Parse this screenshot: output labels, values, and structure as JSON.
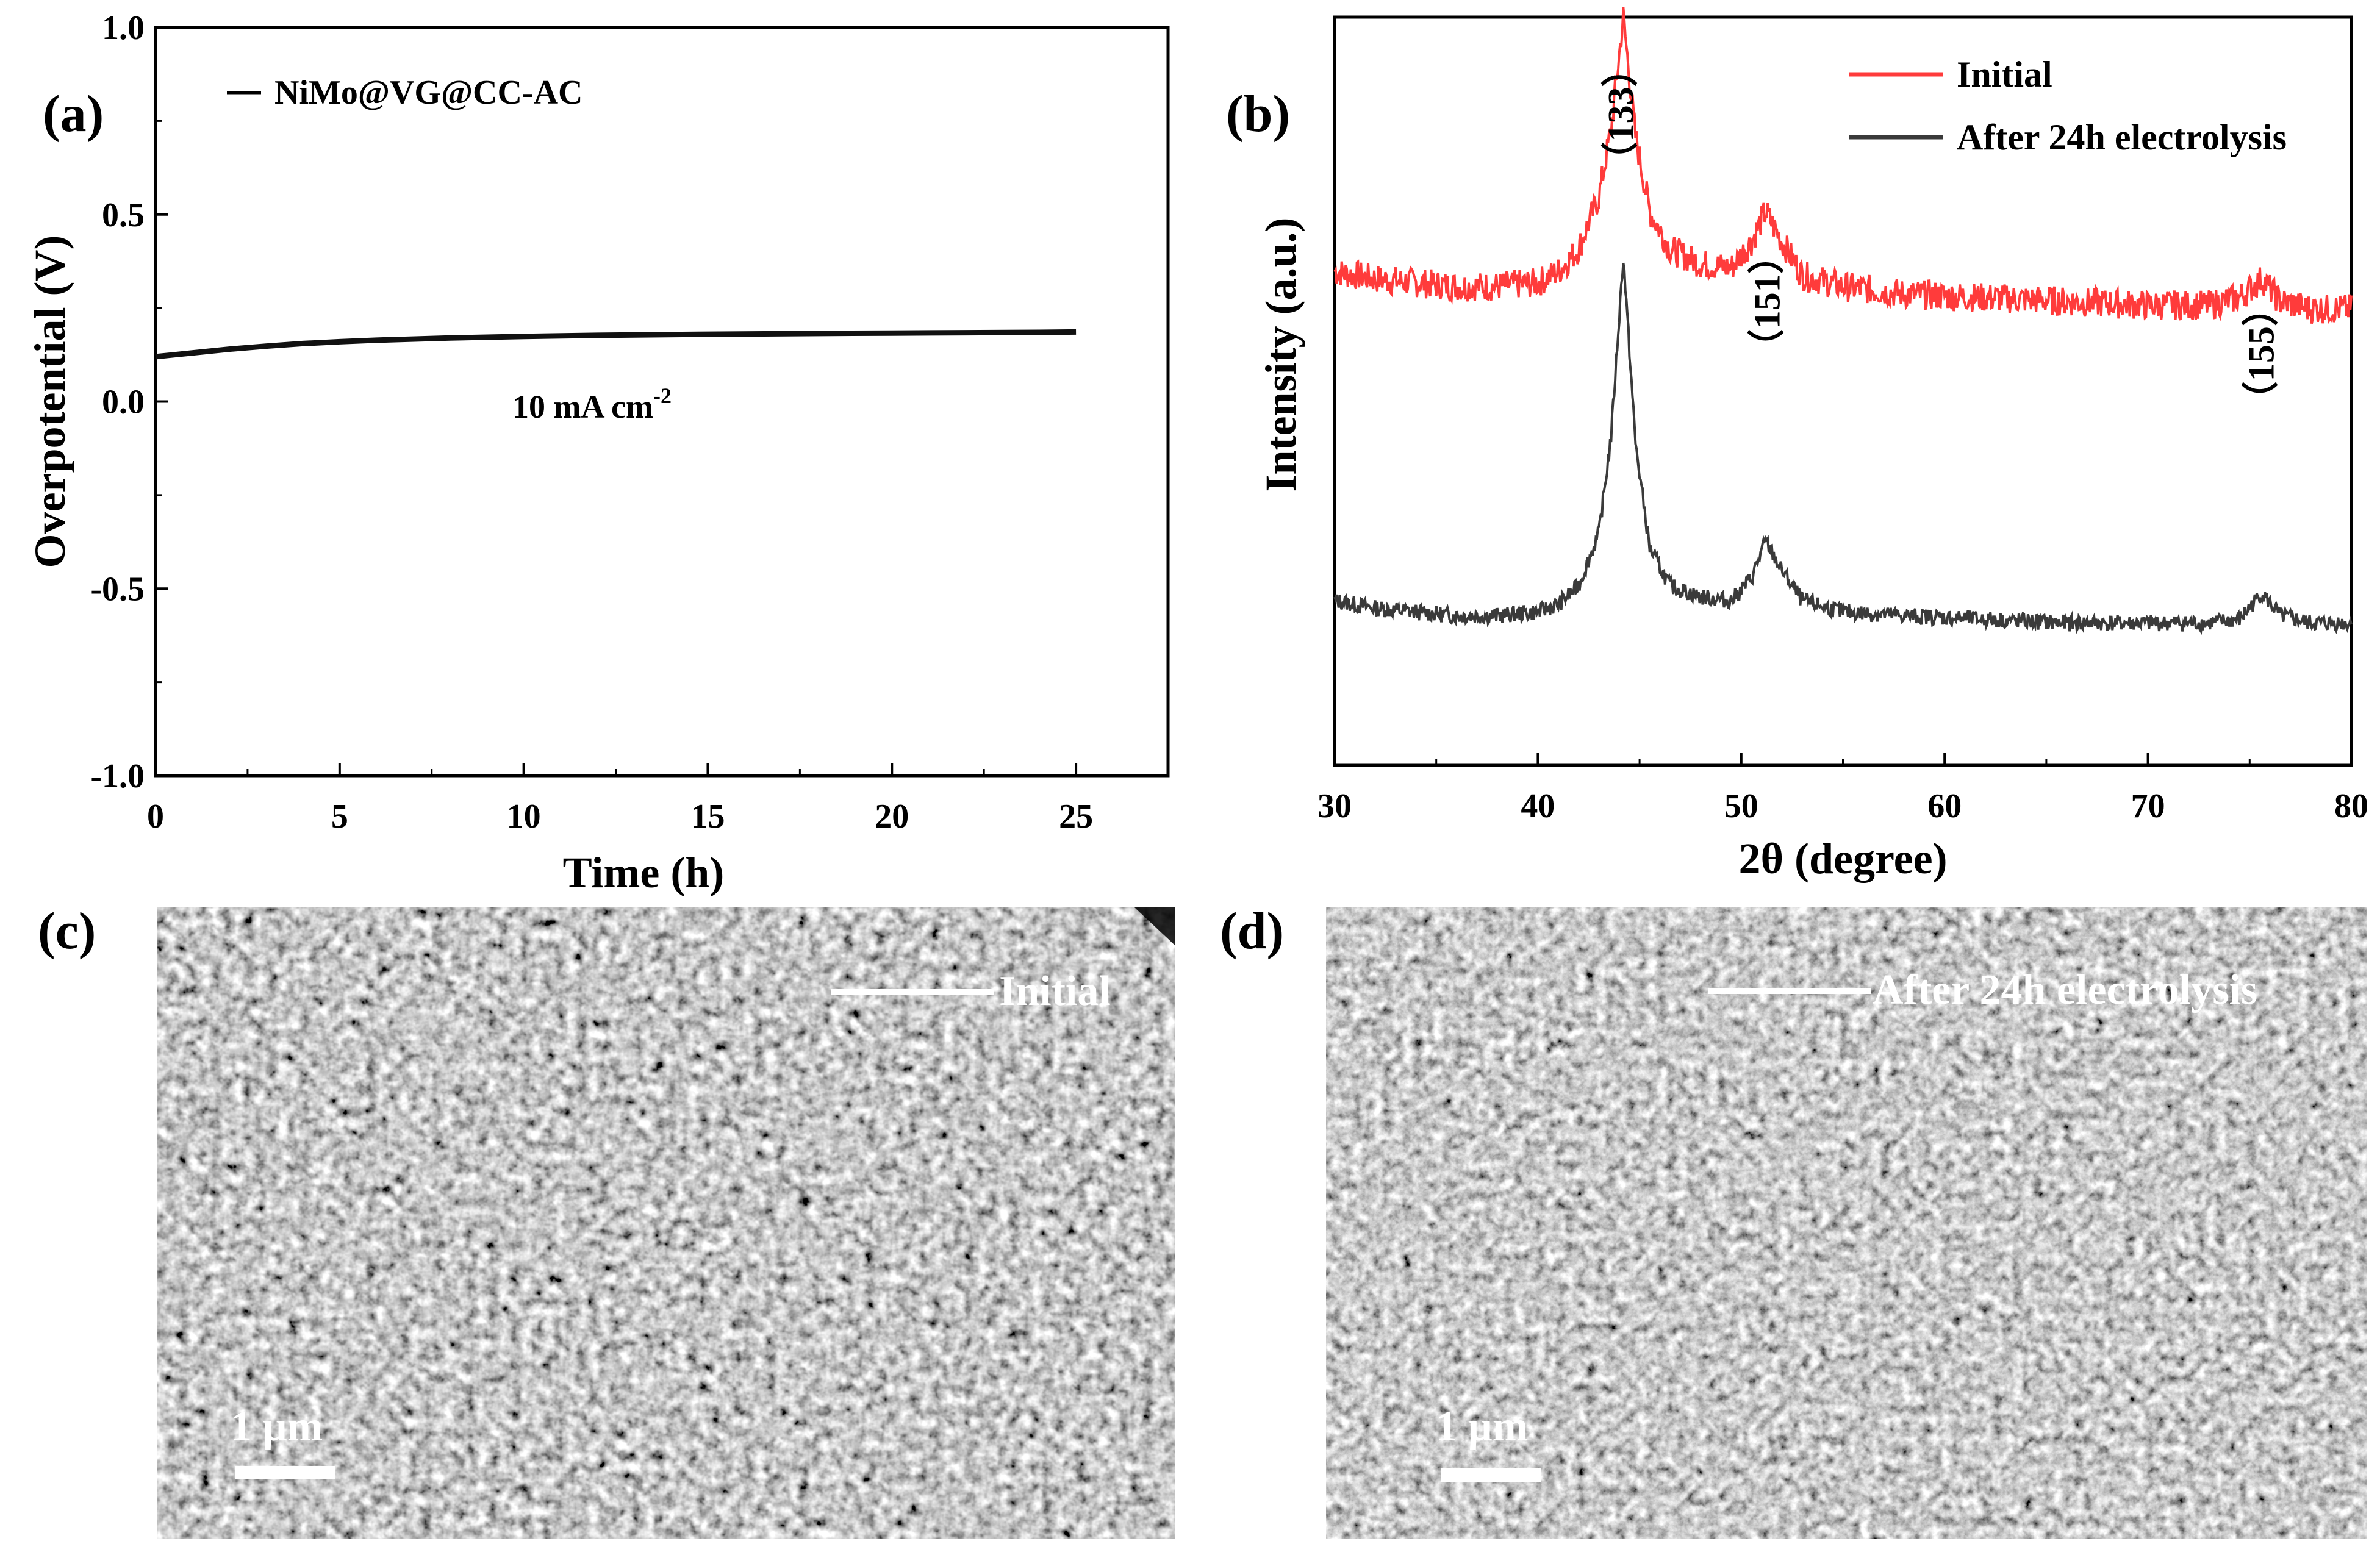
{
  "panels": {
    "a": {
      "label": "(a)"
    },
    "b": {
      "label": "(b)"
    },
    "c": {
      "label": "(c)",
      "image_label": "Initial",
      "scale_label": "1 µm"
    },
    "d": {
      "label": "(d)",
      "image_label": "After 24h electrolysis",
      "scale_label": "1 µm"
    }
  },
  "colors": {
    "axis": "#000000",
    "series_a": "#111111",
    "initial": "#ff3b3b",
    "after": "#3a3a3a",
    "sem_bg_c": "#8a8a8a",
    "sem_bg_d": "#9a9a9a"
  },
  "chart_data": [
    {
      "id": "a",
      "type": "line",
      "title": "",
      "xlabel": "Time (h)",
      "ylabel": "Overpotential (V)",
      "xlim": [
        0,
        27.5
      ],
      "ylim": [
        -1.0,
        1.0
      ],
      "xticks": [
        0,
        5,
        10,
        15,
        20,
        25
      ],
      "xtick_labels": [
        "0",
        "5",
        "10",
        "15",
        "20",
        "25"
      ],
      "yticks": [
        -1.0,
        -0.5,
        0.0,
        0.5,
        1.0
      ],
      "ytick_labels": [
        "-1.0",
        "-0.5",
        "0.0",
        "0.5",
        "1.0"
      ],
      "legend": {
        "placement": "top-left",
        "entries": [
          {
            "name": "NiMo@VG@CC-AC"
          }
        ]
      },
      "annotation": {
        "text": "10 mA cm",
        "superscript": "-2",
        "x": 12.5,
        "y": 0.0
      },
      "series": [
        {
          "name": "NiMo@VG@CC-AC",
          "x": [
            0,
            0.5,
            1,
            2,
            3,
            4,
            5,
            6,
            8,
            10,
            12,
            15,
            18,
            20,
            22,
            24,
            25
          ],
          "y": [
            0.12,
            0.125,
            0.13,
            0.14,
            0.148,
            0.155,
            0.16,
            0.164,
            0.17,
            0.174,
            0.177,
            0.18,
            0.182,
            0.183,
            0.184,
            0.185,
            0.186
          ]
        }
      ]
    },
    {
      "id": "b",
      "type": "line",
      "title": "",
      "xlabel": "2θ (degree)",
      "ylabel": "Intensity (a.u.)",
      "xlim": [
        30,
        80
      ],
      "xticks": [
        30,
        40,
        50,
        60,
        70,
        80
      ],
      "xtick_labels": [
        "30",
        "40",
        "50",
        "60",
        "70",
        "80"
      ],
      "y_ticks_shown": false,
      "legend": {
        "placement": "top-right",
        "entries": [
          {
            "name": "Initial"
          },
          {
            "name": "After 24h electrolysis"
          }
        ]
      },
      "peaks": [
        {
          "label": "（133）",
          "x": 44.2
        },
        {
          "label": "（151）",
          "x": 51.4
        },
        {
          "label": "（155）",
          "x": 75.7
        }
      ],
      "series": [
        {
          "name": "Initial",
          "x": [
            30,
            32,
            34,
            36,
            38,
            40,
            41,
            42,
            43,
            43.6,
            44.2,
            44.8,
            45.5,
            46.5,
            48,
            49.5,
            50.5,
            51.2,
            52,
            53,
            55,
            58,
            62,
            66,
            70,
            73,
            74.5,
            75.6,
            76.5,
            78,
            80
          ],
          "y": [
            0.66,
            0.65,
            0.645,
            0.64,
            0.64,
            0.645,
            0.66,
            0.69,
            0.76,
            0.85,
            1.0,
            0.84,
            0.74,
            0.69,
            0.67,
            0.665,
            0.7,
            0.74,
            0.7,
            0.655,
            0.64,
            0.63,
            0.625,
            0.62,
            0.615,
            0.615,
            0.625,
            0.65,
            0.62,
            0.61,
            0.61
          ]
        },
        {
          "name": "After 24h electrolysis",
          "x": [
            30,
            32,
            34,
            36,
            38,
            40,
            41,
            42,
            43,
            43.6,
            44.2,
            44.8,
            45.5,
            46.5,
            48,
            49.5,
            50.5,
            51.2,
            52,
            53,
            55,
            58,
            62,
            66,
            70,
            73,
            74.5,
            75.6,
            76.5,
            78,
            80
          ],
          "y": [
            0.22,
            0.21,
            0.205,
            0.2,
            0.2,
            0.205,
            0.215,
            0.24,
            0.31,
            0.44,
            0.68,
            0.43,
            0.29,
            0.24,
            0.225,
            0.22,
            0.25,
            0.3,
            0.26,
            0.22,
            0.205,
            0.2,
            0.195,
            0.19,
            0.19,
            0.19,
            0.195,
            0.23,
            0.2,
            0.19,
            0.19
          ]
        }
      ]
    }
  ]
}
